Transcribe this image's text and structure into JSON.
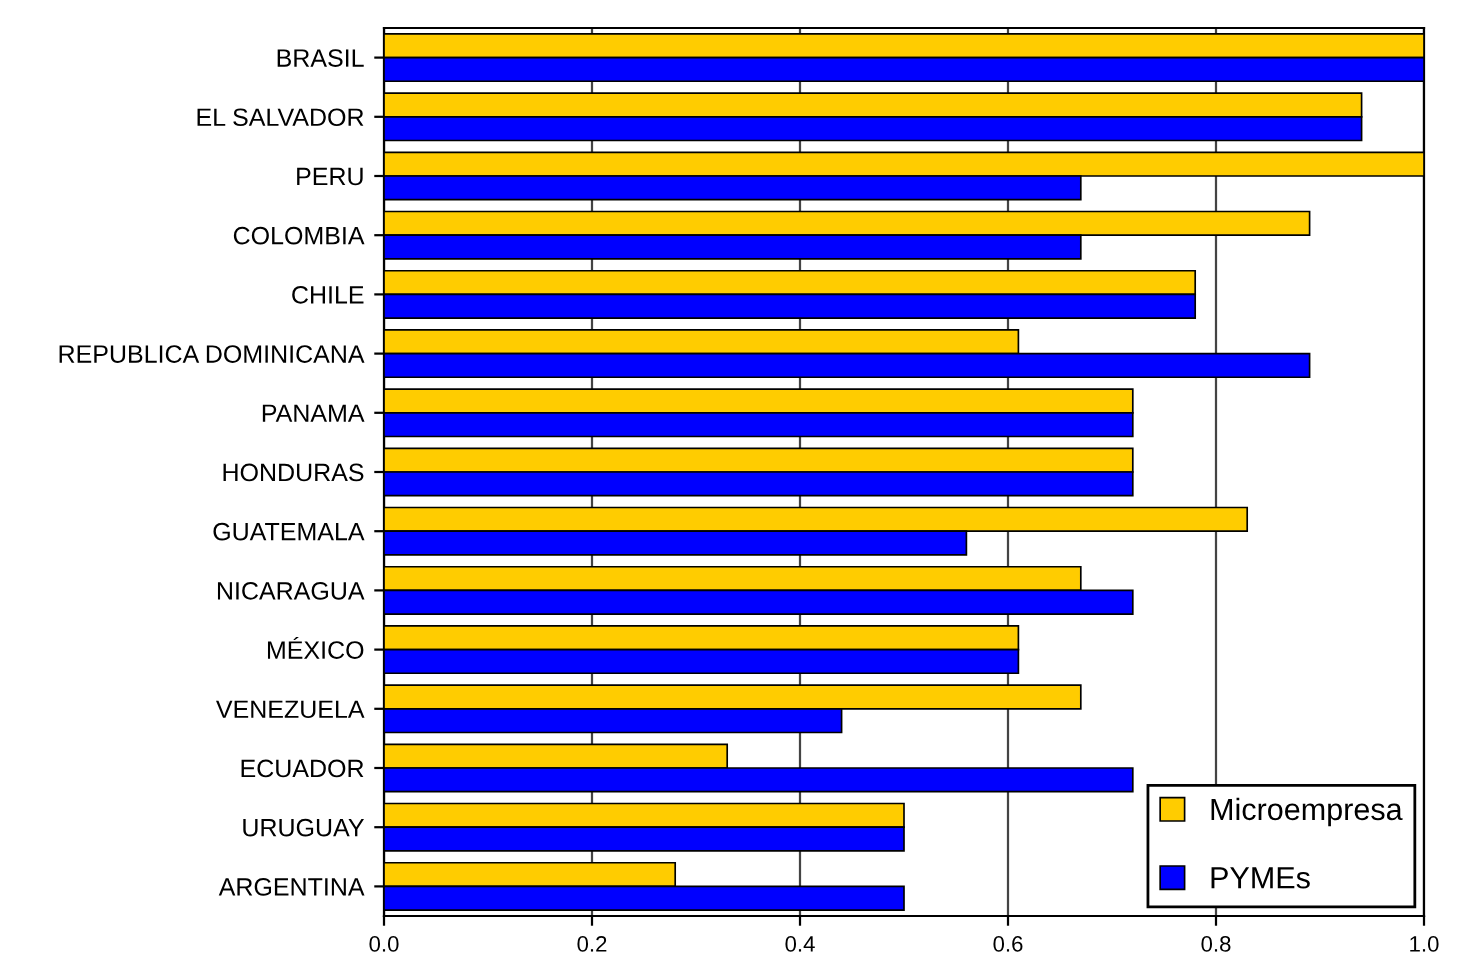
{
  "chart_data": {
    "type": "bar",
    "orientation": "horizontal",
    "categories": [
      "BRASIL",
      "EL SALVADOR",
      "PERU",
      "COLOMBIA",
      "CHILE",
      "REPUBLICA DOMINICANA",
      "PANAMA",
      "HONDURAS",
      "GUATEMALA",
      "NICARAGUA",
      "MÉXICO",
      "VENEZUELA",
      "ECUADOR",
      "URUGUAY",
      "ARGENTINA"
    ],
    "series": [
      {
        "name": "Microempresa",
        "color": "#ffcc00",
        "values": [
          1.0,
          0.94,
          1.0,
          0.89,
          0.78,
          0.61,
          0.72,
          0.72,
          0.83,
          0.67,
          0.61,
          0.67,
          0.33,
          0.5,
          0.28
        ]
      },
      {
        "name": "PYMEs",
        "color": "#0000ff",
        "values": [
          1.0,
          0.94,
          0.67,
          0.67,
          0.78,
          0.89,
          0.72,
          0.72,
          0.56,
          0.72,
          0.61,
          0.44,
          0.72,
          0.5,
          0.5
        ]
      }
    ],
    "xlim": [
      0,
      1
    ],
    "xticks": [
      {
        "value": 0,
        "label": "0.0"
      },
      {
        "value": 0.2,
        "label": "0.2"
      },
      {
        "value": 0.4,
        "label": "0.4"
      },
      {
        "value": 0.6,
        "label": "0.6"
      },
      {
        "value": 0.8,
        "label": "0.8"
      },
      {
        "value": 1,
        "label": "1.0"
      }
    ],
    "grid": "x",
    "legend": "bottom right"
  }
}
